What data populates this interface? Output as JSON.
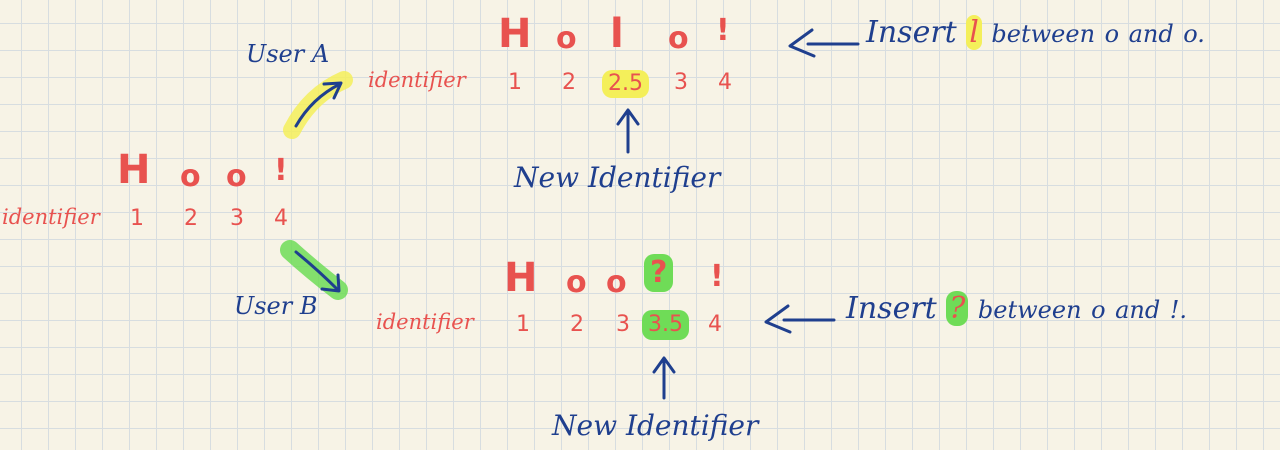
{
  "labels": {
    "identifier": "identifier",
    "user_a": "User A",
    "user_b": "User B",
    "new_identifier": "New Identifier"
  },
  "base": {
    "chars": [
      "H",
      "o",
      "o",
      "!"
    ],
    "ids": [
      "1",
      "2",
      "3",
      "4"
    ]
  },
  "user_a": {
    "chars": [
      "H",
      "o",
      "l",
      "o",
      "!"
    ],
    "ids": [
      "1",
      "2",
      "2.5",
      "3",
      "4"
    ],
    "note": {
      "prefix": "Insert",
      "inserted": "l",
      "rest": "between",
      "end1": "o",
      "conj": "and",
      "end2": "o."
    }
  },
  "user_b": {
    "chars": [
      "H",
      "o",
      "o",
      "?",
      "!"
    ],
    "ids": [
      "1",
      "2",
      "3",
      "3.5",
      "4"
    ],
    "note": {
      "prefix": "Insert",
      "inserted": "?",
      "rest": "between",
      "end1": "o",
      "conj": "and",
      "end2": "!."
    }
  },
  "colors": {
    "red": "#e8524f",
    "navy": "#1f3f8e",
    "highlight_yellow": "#f4ef5a",
    "highlight_green": "#6fdc57"
  }
}
